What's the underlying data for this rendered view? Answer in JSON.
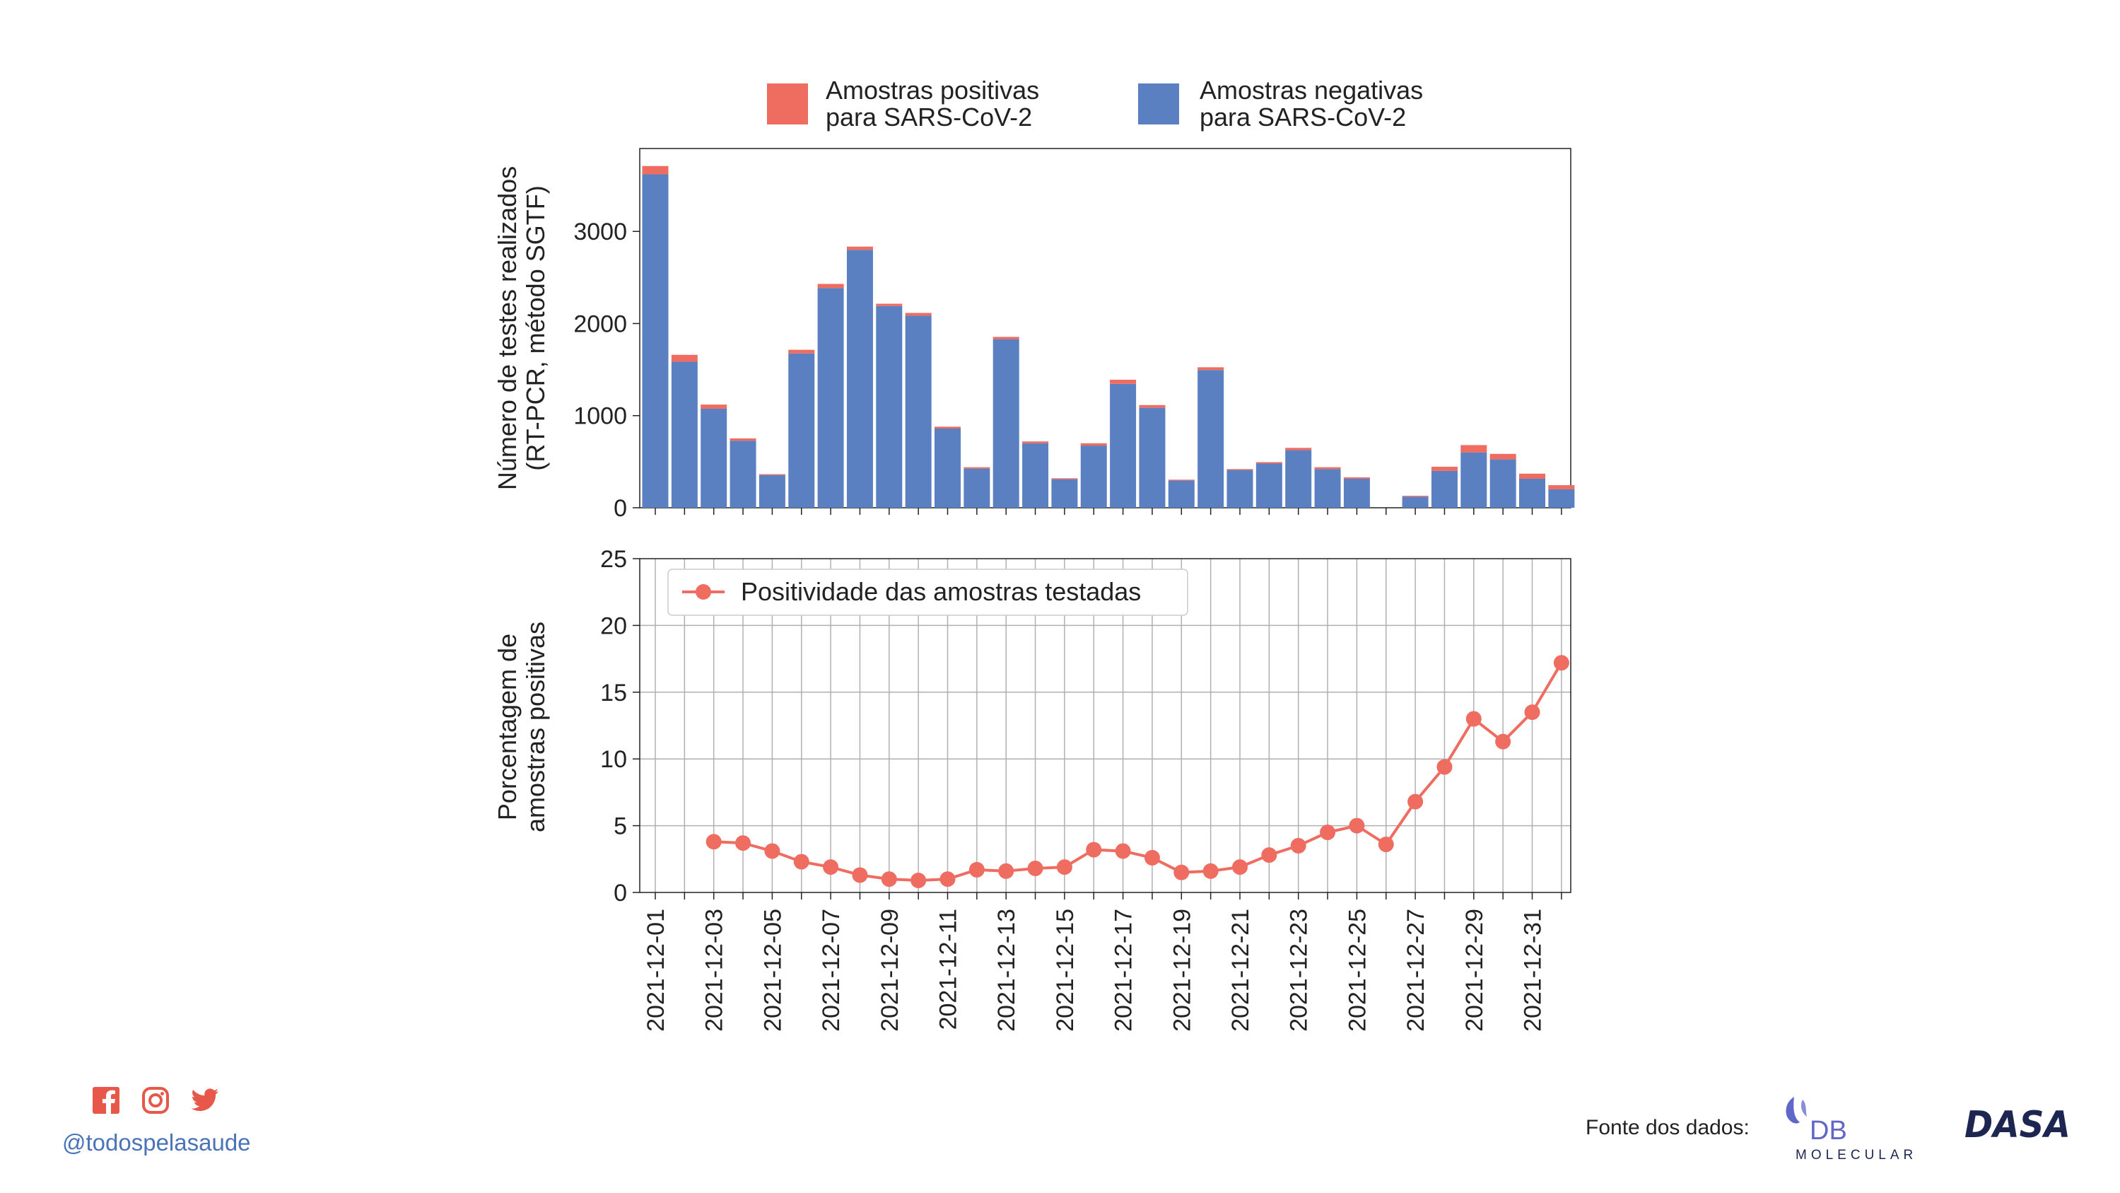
{
  "colors": {
    "positive": "#ef6c61",
    "negative": "#5b80c1",
    "line": "#ef6c61",
    "grid": "#b0b0b0",
    "brand_social": "#e8584a",
    "handle": "#4a73b8",
    "db_logo": "#6166c9",
    "dasa_logo": "#1d2650"
  },
  "legend_top": {
    "positive": [
      "Amostras positivas",
      "para SARS-CoV-2"
    ],
    "negative": [
      "Amostras negativas",
      "para SARS-CoV-2"
    ]
  },
  "chart_data": [
    {
      "type": "bar",
      "stacked": true,
      "ylabel": [
        "Número de testes realizados",
        "(RT-PCR, método SGTF)"
      ],
      "yticks": [
        0,
        1000,
        2000,
        3000
      ],
      "ylim": [
        0,
        3900
      ],
      "x": [
        "2021-12-01",
        "2021-12-02",
        "2021-12-03",
        "2021-12-04",
        "2021-12-05",
        "2021-12-06",
        "2021-12-07",
        "2021-12-08",
        "2021-12-09",
        "2021-12-10",
        "2021-12-11",
        "2021-12-12",
        "2021-12-13",
        "2021-12-14",
        "2021-12-15",
        "2021-12-16",
        "2021-12-17",
        "2021-12-18",
        "2021-12-19",
        "2021-12-20",
        "2021-12-21",
        "2021-12-22",
        "2021-12-23",
        "2021-12-24",
        "2021-12-25",
        "2021-12-26",
        "2021-12-27",
        "2021-12-28",
        "2021-12-29",
        "2021-12-30",
        "2021-12-31",
        "2022-01-01"
      ],
      "series": [
        {
          "name": "Amostras negativas para SARS-CoV-2",
          "values": [
            3620,
            1585,
            1075,
            728,
            355,
            1675,
            2385,
            2800,
            2190,
            2085,
            860,
            425,
            1830,
            700,
            310,
            675,
            1345,
            1085,
            295,
            1495,
            410,
            480,
            625,
            420,
            315,
            0,
            120,
            400,
            600,
            525,
            315,
            200
          ]
        },
        {
          "name": "Amostras positivas para SARS-CoV-2",
          "values": [
            90,
            75,
            45,
            25,
            10,
            40,
            45,
            35,
            25,
            30,
            20,
            15,
            25,
            20,
            10,
            25,
            45,
            30,
            10,
            30,
            10,
            15,
            25,
            20,
            15,
            0,
            10,
            45,
            80,
            60,
            55,
            45
          ]
        }
      ]
    },
    {
      "type": "line",
      "ylabel": [
        "Porcentagem de",
        "amostras positivas"
      ],
      "yticks": [
        0,
        5,
        10,
        15,
        20,
        25
      ],
      "ylim": [
        0,
        25
      ],
      "x": [
        "2021-12-03",
        "2021-12-04",
        "2021-12-05",
        "2021-12-06",
        "2021-12-07",
        "2021-12-08",
        "2021-12-09",
        "2021-12-10",
        "2021-12-11",
        "2021-12-12",
        "2021-12-13",
        "2021-12-14",
        "2021-12-15",
        "2021-12-16",
        "2021-12-17",
        "2021-12-18",
        "2021-12-19",
        "2021-12-20",
        "2021-12-21",
        "2021-12-22",
        "2021-12-23",
        "2021-12-24",
        "2021-12-25",
        "2021-12-26",
        "2021-12-27",
        "2021-12-28",
        "2021-12-29",
        "2021-12-30",
        "2021-12-31",
        "2022-01-01"
      ],
      "series": [
        {
          "name": "Positividade das amostras testadas",
          "values": [
            3.8,
            3.7,
            3.1,
            2.3,
            1.9,
            1.3,
            1.0,
            0.9,
            1.0,
            1.7,
            1.6,
            1.8,
            1.9,
            3.2,
            3.1,
            2.6,
            1.5,
            1.6,
            1.9,
            2.8,
            3.5,
            4.5,
            5.0,
            3.6,
            6.8,
            9.4,
            13.0,
            11.3,
            13.5,
            17.2
          ]
        }
      ],
      "grid": true,
      "legend": "upper-left"
    }
  ],
  "xtick_labels": [
    "2021-12-01",
    "2021-12-03",
    "2021-12-05",
    "2021-12-07",
    "2021-12-09",
    "2021-12-11",
    "2021-12-13",
    "2021-12-15",
    "2021-12-17",
    "2021-12-19",
    "2021-12-21",
    "2021-12-23",
    "2021-12-25",
    "2021-12-27",
    "2021-12-29",
    "2021-12-31"
  ],
  "footer": {
    "social_icons": [
      "facebook-icon",
      "instagram-icon",
      "twitter-icon"
    ],
    "handle": "@todospelasaude",
    "source_label": "Fonte dos dados:",
    "logos": [
      "DB",
      "MOLECULAR",
      "DASA"
    ]
  }
}
